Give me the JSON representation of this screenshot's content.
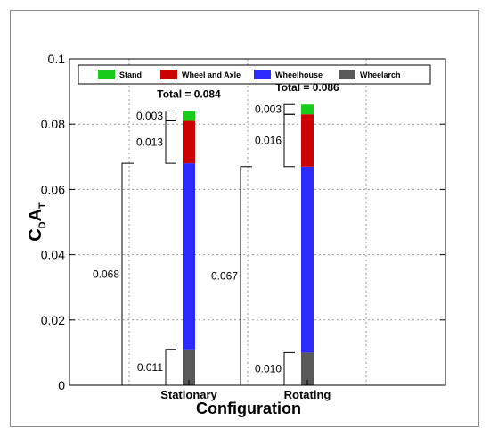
{
  "chart_data": {
    "type": "bar",
    "stacked": true,
    "categories": [
      "Stationary",
      "Rotating"
    ],
    "series": [
      {
        "name": "Wheelarch",
        "color": "#595959",
        "values": [
          0.011,
          0.01
        ]
      },
      {
        "name": "Wheelhouse",
        "color": "#2b2bff",
        "values": [
          0.057,
          0.057
        ]
      },
      {
        "name": "Wheel and Axle",
        "color": "#cc0000",
        "values": [
          0.013,
          0.016
        ]
      },
      {
        "name": "Stand",
        "color": "#19cc19",
        "values": [
          0.003,
          0.003
        ]
      }
    ],
    "legend_order": [
      "Stand",
      "Wheel and Axle",
      "Wheelhouse",
      "Wheelarch"
    ],
    "legend_position": "top",
    "totals": [
      "Total = 0.084",
      "Total = 0.086"
    ],
    "bracket_labels": [
      {
        "stand": "0.003",
        "wheel_axle": "0.013",
        "wheelhouse_total": "0.068",
        "wheelarch": "0.011"
      },
      {
        "stand": "0.003",
        "wheel_axle": "0.016",
        "wheelhouse_total": "0.067",
        "wheelarch": "0.010"
      }
    ],
    "xlabel": "Configuration",
    "ylabel_main": "C",
    "ylabel_sub1": "D",
    "ylabel_main2": "A",
    "ylabel_sub2": "T",
    "ylim": [
      0,
      0.1
    ],
    "yticks": [
      0,
      0.02,
      0.04,
      0.06,
      0.08,
      0.1
    ],
    "ytick_labels": [
      "0",
      "0.02",
      "0.04",
      "0.06",
      "0.08",
      "0.1"
    ],
    "grid": true
  }
}
